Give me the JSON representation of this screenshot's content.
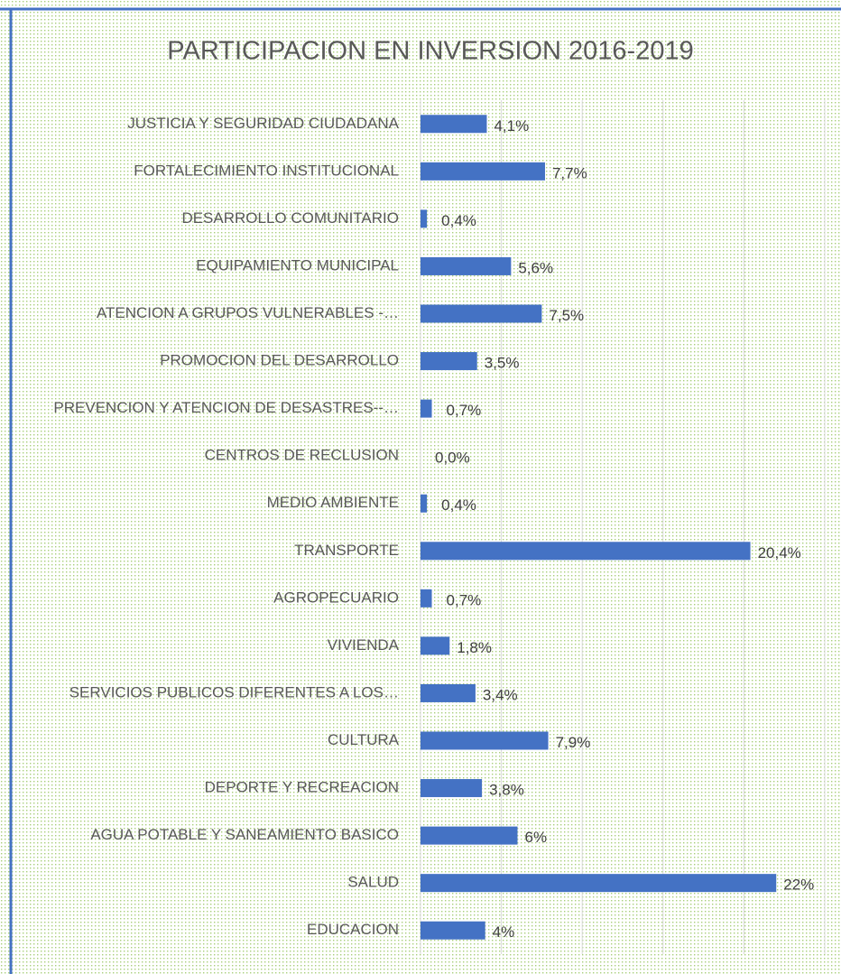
{
  "chart_data": {
    "type": "barh",
    "title": "PARTICIPACION EN INVERSION 2016-2019",
    "categories": [
      "JUSTICIA Y SEGURIDAD CIUDADANA",
      "FORTALECIMIENTO INSTITUCIONAL",
      "DESARROLLO COMUNITARIO",
      "EQUIPAMIENTO MUNICIPAL",
      "ATENCION A GRUPOS VULNERABLES -…",
      "PROMOCION DEL DESARROLLO",
      "PREVENCION Y ATENCION DE DESASTRES--…",
      "CENTROS DE RECLUSION",
      "MEDIO AMBIENTE",
      "TRANSPORTE",
      "AGROPECUARIO",
      "VIVIENDA",
      "SERVICIOS PUBLICOS DIFERENTES A LOS…",
      "CULTURA",
      "DEPORTE Y RECREACION",
      "AGUA POTABLE Y SANEAMIENTO BASICO",
      "SALUD",
      "EDUCACION"
    ],
    "values": [
      4.1,
      7.7,
      0.4,
      5.6,
      7.5,
      3.5,
      0.7,
      0.0,
      0.4,
      20.4,
      0.7,
      1.8,
      3.4,
      7.9,
      3.8,
      6,
      22,
      4
    ],
    "value_labels": [
      "4,1%",
      "7,7%",
      "0,4%",
      "5,6%",
      "7,5%",
      "3,5%",
      "0,7%",
      "0,0%",
      "0,4%",
      "20,4%",
      "0,7%",
      "1,8%",
      "3,4%",
      "7,9%",
      "3,8%",
      "6%",
      "22%",
      "4%"
    ],
    "color": "#4472c4",
    "xlim": [
      0,
      25
    ],
    "xticks": [
      0,
      5,
      10,
      15,
      20,
      25
    ],
    "grid": true
  }
}
